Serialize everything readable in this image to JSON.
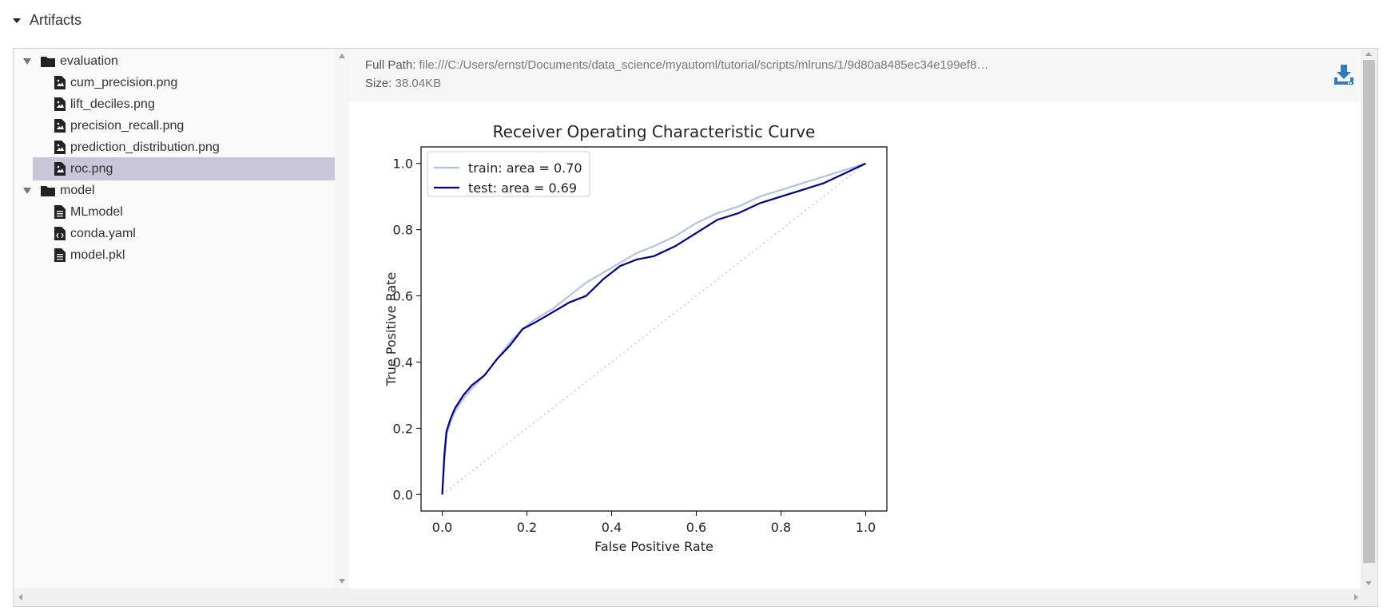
{
  "artifacts": {
    "title": "Artifacts"
  },
  "tree": [
    {
      "type": "folder",
      "label": "evaluation",
      "expanded": true,
      "depth": 0,
      "selected": false,
      "icon": "folder-icon"
    },
    {
      "type": "file",
      "label": "cum_precision.png",
      "depth": 1,
      "selected": false,
      "icon": "image-file-icon"
    },
    {
      "type": "file",
      "label": "lift_deciles.png",
      "depth": 1,
      "selected": false,
      "icon": "image-file-icon"
    },
    {
      "type": "file",
      "label": "precision_recall.png",
      "depth": 1,
      "selected": false,
      "icon": "image-file-icon"
    },
    {
      "type": "file",
      "label": "prediction_distribution.png",
      "depth": 1,
      "selected": false,
      "icon": "image-file-icon"
    },
    {
      "type": "file",
      "label": "roc.png",
      "depth": 1,
      "selected": true,
      "icon": "image-file-icon"
    },
    {
      "type": "folder",
      "label": "model",
      "expanded": true,
      "depth": 0,
      "selected": false,
      "icon": "folder-icon"
    },
    {
      "type": "file",
      "label": "MLmodel",
      "depth": 1,
      "selected": false,
      "icon": "text-file-icon"
    },
    {
      "type": "file",
      "label": "conda.yaml",
      "depth": 1,
      "selected": false,
      "icon": "code-file-icon"
    },
    {
      "type": "file",
      "label": "model.pkl",
      "depth": 1,
      "selected": false,
      "icon": "text-file-icon"
    }
  ],
  "viewer": {
    "full_path_label": "Full Path:",
    "full_path_value": "file:///C:/Users/ernst/Documents/data_science/myautoml/tutorial/scripts/mlruns/1/9d80a8485ec34e199ef8…",
    "size_label": "Size:",
    "size_value": "38.04KB",
    "download_icon": "download-icon"
  },
  "colors": {
    "selected_row": "#c8c6d8",
    "train_line": "#b0c4de",
    "test_line": "#000080",
    "diagonal": "#d3d3d3",
    "download_icon": "#337ab7"
  },
  "chart_data": {
    "type": "line",
    "title": "Receiver Operating Characteristic Curve",
    "xlabel": "False Positive Rate",
    "ylabel": "True Positive Rate",
    "xlim": [
      -0.05,
      1.05
    ],
    "ylim": [
      -0.05,
      1.05
    ],
    "xticks": [
      0.0,
      0.2,
      0.4,
      0.6,
      0.8,
      1.0
    ],
    "yticks": [
      0.0,
      0.2,
      0.4,
      0.6,
      0.8,
      1.0
    ],
    "xtick_labels": [
      "0.0",
      "0.2",
      "0.4",
      "0.6",
      "0.8",
      "1.0"
    ],
    "ytick_labels": [
      "0.0",
      "0.2",
      "0.4",
      "0.6",
      "0.8",
      "1.0"
    ],
    "legend_position": "top-left",
    "series": [
      {
        "name": "train: area = 0.70",
        "color": "#b0c4de",
        "x": [
          0.0,
          0.005,
          0.01,
          0.02,
          0.03,
          0.05,
          0.07,
          0.1,
          0.13,
          0.16,
          0.19,
          0.22,
          0.26,
          0.3,
          0.34,
          0.38,
          0.42,
          0.46,
          0.5,
          0.55,
          0.6,
          0.65,
          0.7,
          0.75,
          0.8,
          0.85,
          0.9,
          0.95,
          1.0
        ],
        "y": [
          0.0,
          0.1,
          0.18,
          0.22,
          0.25,
          0.29,
          0.32,
          0.36,
          0.41,
          0.46,
          0.5,
          0.53,
          0.56,
          0.6,
          0.64,
          0.67,
          0.7,
          0.73,
          0.75,
          0.78,
          0.82,
          0.85,
          0.87,
          0.9,
          0.92,
          0.94,
          0.96,
          0.98,
          1.0
        ]
      },
      {
        "name": "test: area = 0.69",
        "color": "#000080",
        "x": [
          0.0,
          0.005,
          0.01,
          0.02,
          0.03,
          0.05,
          0.07,
          0.1,
          0.13,
          0.16,
          0.19,
          0.22,
          0.26,
          0.3,
          0.34,
          0.38,
          0.42,
          0.46,
          0.5,
          0.55,
          0.6,
          0.65,
          0.7,
          0.75,
          0.8,
          0.85,
          0.9,
          0.95,
          1.0
        ],
        "y": [
          0.0,
          0.12,
          0.19,
          0.23,
          0.26,
          0.3,
          0.33,
          0.36,
          0.41,
          0.45,
          0.5,
          0.52,
          0.55,
          0.58,
          0.6,
          0.65,
          0.69,
          0.71,
          0.72,
          0.75,
          0.79,
          0.83,
          0.85,
          0.88,
          0.9,
          0.92,
          0.94,
          0.97,
          1.0
        ]
      }
    ],
    "reference_line": {
      "x": [
        0.0,
        1.0
      ],
      "y": [
        0.0,
        1.0
      ],
      "style": "dotted"
    }
  }
}
